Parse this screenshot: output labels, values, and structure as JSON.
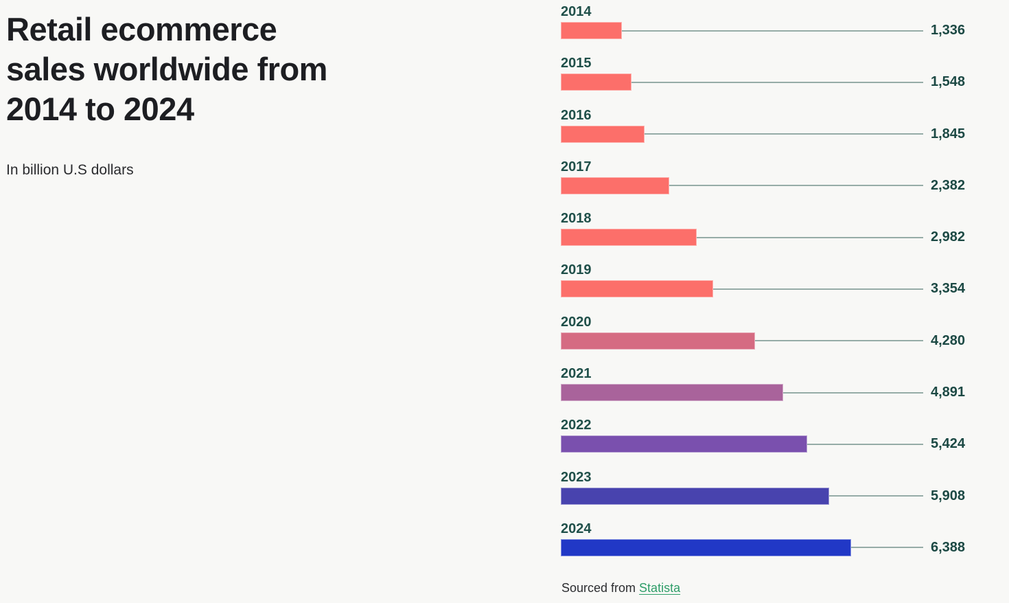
{
  "page": {
    "background_color": "#f8f8f6"
  },
  "header": {
    "title": "Retail ecommerce\nsales worldwide from\n2014 to 2024",
    "subtitle": "In billion U.S dollars"
  },
  "footer": {
    "prefix": "Sourced from ",
    "link_label": "Statista",
    "link_color": "#2e9d68"
  },
  "chart_data": {
    "type": "bar",
    "orientation": "horizontal",
    "title": "Retail ecommerce sales worldwide from 2014 to 2024",
    "unit": "billion U.S dollars",
    "categories": [
      "2014",
      "2015",
      "2016",
      "2017",
      "2018",
      "2019",
      "2020",
      "2021",
      "2022",
      "2023",
      "2024"
    ],
    "values": [
      1336,
      1548,
      1845,
      2382,
      2982,
      3354,
      4280,
      4891,
      5424,
      5908,
      6388
    ],
    "value_labels": [
      "1,336",
      "1,548",
      "1,845",
      "2,382",
      "2,982",
      "3,354",
      "4,280",
      "4,891",
      "5,424",
      "5,908",
      "6,388"
    ],
    "bar_colors": [
      "#fc6f6a",
      "#fc6f6a",
      "#fc6f6a",
      "#fc6f6a",
      "#fc6f6a",
      "#fc6f6a",
      "#d56b82",
      "#a9639b",
      "#7a50ae",
      "#4843ae",
      "#2138c6"
    ],
    "xlim": [
      0,
      6388
    ],
    "grid": false,
    "legend": false,
    "category_label_color": "#20504a",
    "value_label_color": "#1c4944",
    "connector_line_color": "#96aca7"
  }
}
